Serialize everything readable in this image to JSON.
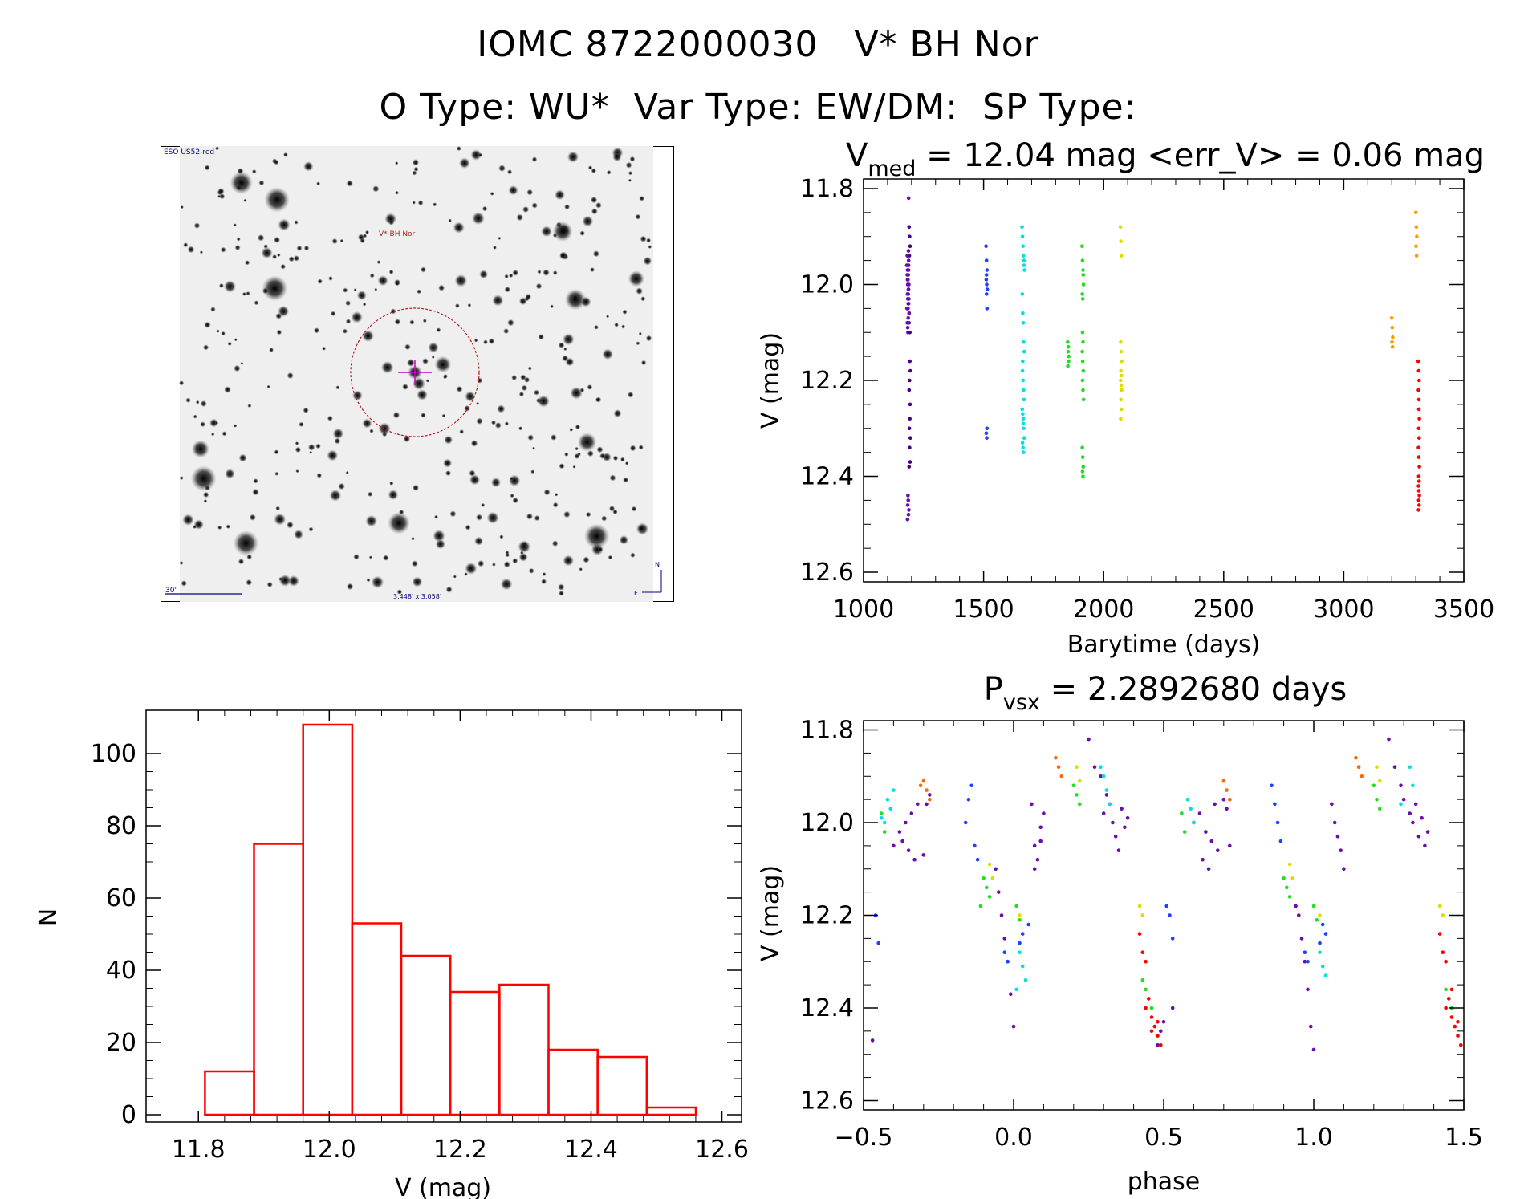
{
  "header": {
    "line1": "IOMC 8722000030   V* BH Nor",
    "line2": "O Type: WU*  Var Type: EW/DM:  SP Type:"
  },
  "finder": {
    "survey": "ESO US52-red",
    "target_label": "V* BH Nor",
    "scale_label": "30\"",
    "size_label": "3.448' x 3.058'",
    "compass_n": "N",
    "compass_e": "E",
    "frame_color": "#000080",
    "circle_color": "#b22222",
    "cross_color": "#cc00cc"
  },
  "chart_data": [
    {
      "id": "lightcurve",
      "type": "scatter",
      "title_main": "V",
      "title_sub": "med",
      "title_rest": " = 12.04 mag <err_V> = 0.06 mag",
      "xlabel": "Barytime (days)",
      "ylabel": "V (mag)",
      "xlim": [
        1000,
        3500
      ],
      "ylim": [
        12.62,
        11.78
      ],
      "xticks": [
        1000,
        1500,
        2000,
        2500,
        3000,
        3500
      ],
      "xtick_labels": [
        "1000",
        "1500",
        "2000",
        "2500",
        "3000",
        "3500"
      ],
      "yticks": [
        11.8,
        12.0,
        12.2,
        12.4,
        12.6
      ],
      "ytick_labels": [
        "11.8",
        "12.0",
        "12.2",
        "12.4",
        "12.6"
      ],
      "series": [
        {
          "name": "s1",
          "color": "#6a0dad",
          "x": [
            1180,
            1182,
            1184,
            1186,
            1188,
            1190,
            1183,
            1185,
            1187,
            1189,
            1181,
            1186,
            1184,
            1188,
            1182,
            1190,
            1185,
            1187,
            1183,
            1189,
            1186,
            1184,
            1188,
            1185,
            1187,
            1183,
            1186,
            1190,
            1182,
            1188,
            1185,
            1184,
            1187,
            1183,
            1189,
            1186,
            1188
          ],
          "y": [
            11.96,
            11.98,
            12.0,
            12.02,
            12.04,
            12.06,
            11.97,
            11.99,
            12.01,
            12.03,
            12.05,
            12.07,
            12.09,
            11.95,
            11.94,
            12.08,
            12.1,
            11.93,
            12.02,
            12.0,
            11.98,
            12.03,
            11.97,
            12.05,
            12.01,
            11.99,
            12.04,
            12.06,
            12.08,
            11.96,
            12.44,
            12.46,
            12.48,
            12.49,
            12.47,
            12.45,
            11.82
          ]
        },
        {
          "name": "s2",
          "color": "#4b0082",
          "x": [
            1190,
            1192,
            1194,
            1191,
            1193,
            1195,
            1192,
            1190,
            1194,
            1193,
            1191,
            1195,
            1192,
            1194,
            1190,
            1193
          ],
          "y": [
            11.88,
            11.9,
            11.92,
            11.94,
            12.1,
            12.18,
            12.2,
            12.22,
            12.25,
            12.28,
            12.3,
            12.32,
            12.34,
            12.37,
            12.38,
            12.16
          ]
        },
        {
          "name": "s3",
          "color": "#1e40ff",
          "x": [
            1510,
            1512,
            1514,
            1511,
            1513,
            1515,
            1512,
            1514,
            1511,
            1513,
            1512,
            1514
          ],
          "y": [
            11.92,
            11.95,
            11.97,
            11.99,
            12.0,
            12.01,
            12.02,
            12.05,
            12.31,
            12.32,
            11.98,
            12.3
          ]
        },
        {
          "name": "s4",
          "color": "#00e0e0",
          "x": [
            1660,
            1662,
            1664,
            1666,
            1668,
            1670,
            1661,
            1663,
            1665,
            1667,
            1669,
            1662,
            1664,
            1666,
            1668,
            1661,
            1663,
            1665,
            1667,
            1669,
            1662,
            1664,
            1666,
            1668,
            1663,
            1665
          ],
          "y": [
            11.88,
            11.9,
            11.92,
            11.94,
            11.96,
            11.97,
            12.02,
            12.06,
            12.08,
            12.12,
            12.14,
            12.18,
            12.2,
            12.22,
            12.24,
            12.26,
            12.27,
            12.28,
            12.3,
            12.32,
            12.33,
            12.34,
            12.35,
            11.95,
            12.16,
            12.29
          ]
        },
        {
          "name": "s5",
          "color": "#22dd22",
          "x": [
            1850,
            1852,
            1854,
            1851,
            1853,
            1855,
            1910,
            1912,
            1914,
            1916,
            1911,
            1913,
            1915,
            1912,
            1914,
            1911,
            1913,
            1915,
            1912,
            1914,
            1916,
            1911,
            1913,
            1915,
            1912,
            1914
          ],
          "y": [
            12.12,
            12.14,
            12.16,
            12.17,
            12.13,
            12.15,
            11.92,
            11.95,
            11.97,
            12.0,
            12.02,
            12.03,
            11.98,
            12.1,
            12.12,
            12.14,
            12.16,
            12.18,
            12.2,
            12.22,
            12.24,
            12.34,
            12.36,
            12.38,
            12.39,
            12.4
          ]
        },
        {
          "name": "s6",
          "color": "#dddd00",
          "x": [
            2070,
            2072,
            2074,
            2071,
            2073,
            2075,
            2072,
            2074,
            2071,
            2073,
            2075,
            2072,
            2074,
            2071
          ],
          "y": [
            11.88,
            11.91,
            11.94,
            12.12,
            12.14,
            12.16,
            12.18,
            12.19,
            12.2,
            12.21,
            12.22,
            12.24,
            12.26,
            12.28
          ]
        },
        {
          "name": "s7",
          "color": "#ff9900",
          "x": [
            3200,
            3202,
            3204,
            3201,
            3203,
            3300,
            3302,
            3304,
            3301,
            3303
          ],
          "y": [
            12.07,
            12.09,
            12.11,
            12.12,
            12.13,
            11.85,
            11.88,
            11.9,
            11.92,
            11.94
          ]
        },
        {
          "name": "s8",
          "color": "#ff0000",
          "x": [
            3310,
            3312,
            3314,
            3311,
            3313,
            3315,
            3312,
            3314,
            3311,
            3313,
            3315,
            3312,
            3314,
            3311,
            3313,
            3315,
            3312,
            3314,
            3311,
            3313
          ],
          "y": [
            12.16,
            12.18,
            12.2,
            12.22,
            12.26,
            12.28,
            12.3,
            12.32,
            12.34,
            12.36,
            12.38,
            12.4,
            12.41,
            12.42,
            12.43,
            12.44,
            12.45,
            12.46,
            12.47,
            12.24
          ]
        }
      ]
    },
    {
      "id": "histogram",
      "type": "bar",
      "xlabel": "V (mag)",
      "ylabel": "N",
      "xlim": [
        11.72,
        12.63
      ],
      "ylim": [
        -2,
        112
      ],
      "xticks": [
        11.8,
        12.0,
        12.2,
        12.4,
        12.6
      ],
      "xtick_labels": [
        "11.8",
        "12.0",
        "12.2",
        "12.4",
        "12.6"
      ],
      "yticks": [
        0,
        20,
        40,
        60,
        80,
        100
      ],
      "ytick_labels": [
        "0",
        "20",
        "40",
        "60",
        "80",
        "100"
      ],
      "color": "#ff0000",
      "bin_edges": [
        11.81,
        11.885,
        11.96,
        12.035,
        12.11,
        12.185,
        12.26,
        12.335,
        12.41,
        12.485,
        12.56
      ],
      "values": [
        12,
        75,
        108,
        53,
        44,
        34,
        36,
        18,
        16,
        2
      ]
    },
    {
      "id": "phased",
      "type": "scatter",
      "title_main": "P",
      "title_sub": "vsx",
      "title_rest": " = 2.2892680 days",
      "xlabel": "phase",
      "ylabel": "V (mag)",
      "xlim": [
        -0.5,
        1.5
      ],
      "ylim": [
        12.62,
        11.78
      ],
      "xticks": [
        -0.5,
        0.0,
        0.5,
        1.0,
        1.5
      ],
      "xtick_labels": [
        "−0.5",
        "0.0",
        "0.5",
        "1.0",
        "1.5"
      ],
      "yticks": [
        11.8,
        12.0,
        12.2,
        12.4,
        12.6
      ],
      "ytick_labels": [
        "11.8",
        "12.0",
        "12.2",
        "12.4",
        "12.6"
      ],
      "series": [
        {
          "name": "s1",
          "color": "#6a0dad",
          "x": [
            -0.47,
            -0.4,
            -0.38,
            -0.36,
            -0.34,
            -0.32,
            -0.37,
            -0.35,
            -0.33,
            -0.3,
            -0.29,
            -0.28,
            -0.06,
            -0.05,
            -0.04,
            -0.03,
            -0.02,
            -0.01,
            0.0,
            0.07,
            0.08,
            0.09,
            0.1,
            0.06,
            0.07,
            0.09,
            0.25,
            0.27,
            0.29,
            0.31,
            0.3,
            0.32,
            0.33,
            0.34,
            0.35,
            0.36,
            0.37,
            0.38,
            0.48,
            0.49,
            0.5,
            0.53,
            0.6,
            0.62,
            0.64,
            0.66,
            0.68,
            0.63,
            0.65,
            0.67,
            0.7,
            0.71,
            0.72,
            0.94,
            0.95,
            0.96,
            0.97,
            0.98,
            0.99,
            1.0,
            1.07,
            1.08,
            1.09,
            1.1,
            1.06,
            1.25,
            1.27,
            1.29,
            1.3,
            1.32,
            1.33,
            1.34,
            1.35,
            1.36,
            1.37,
            1.38
          ],
          "y": [
            12.47,
            12.05,
            12.02,
            12.0,
            11.98,
            11.96,
            12.04,
            12.06,
            12.08,
            12.07,
            11.96,
            11.94,
            12.1,
            12.15,
            12.2,
            12.25,
            12.3,
            12.37,
            12.44,
            12.05,
            12.08,
            12.01,
            11.98,
            11.96,
            12.1,
            12.04,
            11.82,
            11.88,
            11.9,
            11.94,
            11.98,
            11.96,
            12.0,
            12.03,
            12.06,
            11.97,
            12.01,
            11.99,
            12.48,
            12.45,
            12.43,
            12.4,
            12.0,
            11.98,
            12.02,
            12.04,
            12.06,
            12.08,
            12.1,
            11.96,
            11.95,
            11.97,
            12.05,
            12.18,
            12.2,
            12.25,
            12.3,
            12.36,
            12.44,
            12.49,
            12.0,
            12.03,
            12.06,
            12.1,
            11.96,
            11.82,
            11.88,
            11.92,
            11.95,
            11.98,
            12.0,
            11.96,
            12.03,
            11.99,
            12.05,
            12.02
          ]
        },
        {
          "name": "s2",
          "color": "#1e40ff",
          "x": [
            -0.46,
            -0.45,
            -0.14,
            -0.15,
            -0.16,
            -0.13,
            -0.12,
            -0.03,
            -0.02,
            0.02,
            0.03,
            0.05,
            0.51,
            0.52,
            0.53,
            0.86,
            0.87,
            0.88,
            0.89,
            0.97,
            0.98,
            1.02,
            1.03,
            1.04
          ],
          "y": [
            12.2,
            12.26,
            11.92,
            11.95,
            12.0,
            12.05,
            12.08,
            12.28,
            12.3,
            12.26,
            12.24,
            12.22,
            12.18,
            12.2,
            12.25,
            11.92,
            11.96,
            12.0,
            12.04,
            12.28,
            12.3,
            12.26,
            12.22,
            12.24
          ]
        },
        {
          "name": "s3",
          "color": "#00e0e0",
          "x": [
            -0.42,
            -0.41,
            -0.4,
            -0.44,
            -0.43,
            0.02,
            0.03,
            0.04,
            0.01,
            0.29,
            0.3,
            0.31,
            0.32,
            0.58,
            0.59,
            0.6,
            0.56,
            1.02,
            1.03,
            1.04,
            1.32,
            1.33,
            1.29
          ],
          "y": [
            11.95,
            11.97,
            11.93,
            11.99,
            12.0,
            12.28,
            12.31,
            12.34,
            12.36,
            11.88,
            11.9,
            11.93,
            11.96,
            11.95,
            11.97,
            12.0,
            11.98,
            12.28,
            12.31,
            12.33,
            11.88,
            11.92,
            11.96
          ]
        },
        {
          "name": "s4",
          "color": "#22dd22",
          "x": [
            -0.44,
            -0.43,
            -0.1,
            -0.09,
            -0.08,
            -0.11,
            0.01,
            0.02,
            0.2,
            0.21,
            0.22,
            0.44,
            0.45,
            0.46,
            0.43,
            0.56,
            0.57,
            0.9,
            0.91,
            0.92,
            1.0,
            1.01,
            1.2,
            1.21,
            1.22,
            1.44,
            1.45,
            1.46
          ],
          "y": [
            11.98,
            12.02,
            12.12,
            12.14,
            12.16,
            12.18,
            12.18,
            12.21,
            11.92,
            11.94,
            11.96,
            12.36,
            12.38,
            12.4,
            12.34,
            11.98,
            12.02,
            12.12,
            12.14,
            12.16,
            12.18,
            12.21,
            11.92,
            11.95,
            11.97,
            12.36,
            12.38,
            12.4
          ]
        },
        {
          "name": "s5",
          "color": "#dddd00",
          "x": [
            -0.08,
            -0.07,
            0.02,
            0.21,
            0.22,
            0.42,
            0.43,
            0.92,
            0.93,
            1.02,
            1.21,
            1.22,
            1.42,
            1.43
          ],
          "y": [
            12.09,
            12.12,
            12.2,
            11.88,
            11.91,
            12.18,
            12.2,
            12.09,
            12.12,
            12.2,
            11.88,
            11.91,
            12.18,
            12.2
          ]
        },
        {
          "name": "s6",
          "color": "#ff6600",
          "x": [
            -0.3,
            -0.29,
            -0.28,
            -0.31,
            0.14,
            0.15,
            0.16,
            0.7,
            0.71,
            0.72,
            1.14,
            1.15,
            1.16
          ],
          "y": [
            11.91,
            11.93,
            11.95,
            11.92,
            11.86,
            11.88,
            11.9,
            11.91,
            11.93,
            11.95,
            11.86,
            11.88,
            11.9
          ]
        },
        {
          "name": "s7",
          "color": "#ff0000",
          "x": [
            0.42,
            0.43,
            0.44,
            0.45,
            0.46,
            0.47,
            0.48,
            0.49,
            0.44,
            0.46,
            0.48,
            1.42,
            1.43,
            1.44,
            1.45,
            1.46,
            1.47,
            1.48,
            1.49,
            1.44,
            1.46,
            1.48
          ],
          "y": [
            12.24,
            12.28,
            12.3,
            12.38,
            12.42,
            12.44,
            12.46,
            12.48,
            12.4,
            12.45,
            12.43,
            12.24,
            12.28,
            12.3,
            12.38,
            12.42,
            12.44,
            12.46,
            12.48,
            12.4,
            12.36,
            12.43
          ]
        }
      ]
    }
  ]
}
